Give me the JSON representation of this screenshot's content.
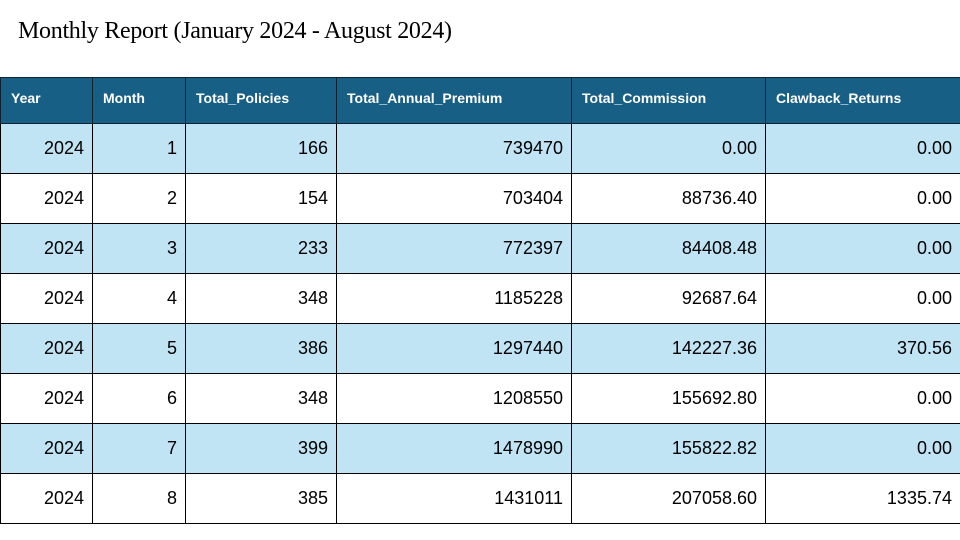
{
  "report": {
    "title": "Monthly Report (January 2024 - August 2024)"
  },
  "table": {
    "headers": [
      "Year",
      "Month",
      "Total_Policies",
      "Total_Annual_Premium",
      "Total_Commission",
      "Clawback_Returns"
    ],
    "rows": [
      [
        "2024",
        "1",
        "166",
        "739470",
        "0.00",
        "0.00"
      ],
      [
        "2024",
        "2",
        "154",
        "703404",
        "88736.40",
        "0.00"
      ],
      [
        "2024",
        "3",
        "233",
        "772397",
        "84408.48",
        "0.00"
      ],
      [
        "2024",
        "4",
        "348",
        "1185228",
        "92687.64",
        "0.00"
      ],
      [
        "2024",
        "5",
        "386",
        "1297440",
        "142227.36",
        "370.56"
      ],
      [
        "2024",
        "6",
        "348",
        "1208550",
        "155692.80",
        "0.00"
      ],
      [
        "2024",
        "7",
        "399",
        "1478990",
        "155822.82",
        "0.00"
      ],
      [
        "2024",
        "8",
        "385",
        "1431011",
        "207058.60",
        "1335.74"
      ]
    ]
  },
  "colors": {
    "header_background": "#185f86",
    "header_text": "#ffffff",
    "stripe_background": "#c0e4f4",
    "row_background": "#ffffff"
  }
}
